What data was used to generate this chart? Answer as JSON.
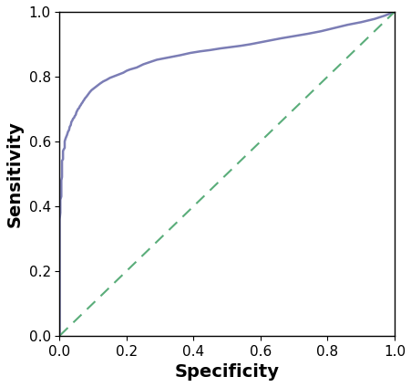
{
  "title": "",
  "xlabel": "Specificity",
  "ylabel": "Sensitivity",
  "xlim": [
    0.0,
    1.0
  ],
  "ylim": [
    0.0,
    1.0
  ],
  "xticks": [
    0.0,
    0.2,
    0.4,
    0.6,
    0.8,
    1.0
  ],
  "yticks": [
    0.0,
    0.2,
    0.4,
    0.6,
    0.8,
    1.0
  ],
  "roc_color": "#7b7db5",
  "diag_color": "#5aad7a",
  "roc_linewidth": 1.8,
  "diag_linewidth": 1.5,
  "diag_dashes": [
    6,
    4
  ],
  "xlabel_fontsize": 14,
  "ylabel_fontsize": 14,
  "tick_fontsize": 11,
  "background_color": "#ffffff",
  "roc_points_x": [
    0.0,
    0.0,
    0.0,
    0.002,
    0.002,
    0.005,
    0.005,
    0.007,
    0.007,
    0.01,
    0.01,
    0.012,
    0.015,
    0.015,
    0.018,
    0.02,
    0.022,
    0.025,
    0.028,
    0.03,
    0.033,
    0.035,
    0.038,
    0.04,
    0.043,
    0.045,
    0.048,
    0.05,
    0.055,
    0.058,
    0.06,
    0.063,
    0.065,
    0.068,
    0.07,
    0.073,
    0.075,
    0.08,
    0.085,
    0.09,
    0.095,
    0.1,
    0.11,
    0.12,
    0.13,
    0.14,
    0.15,
    0.16,
    0.17,
    0.18,
    0.19,
    0.2,
    0.21,
    0.22,
    0.23,
    0.24,
    0.25,
    0.27,
    0.29,
    0.31,
    0.33,
    0.36,
    0.39,
    0.42,
    0.45,
    0.48,
    0.51,
    0.54,
    0.57,
    0.6,
    0.63,
    0.66,
    0.7,
    0.74,
    0.78,
    0.82,
    0.86,
    0.9,
    0.94,
    0.97,
    1.0
  ],
  "roc_points_y": [
    0.0,
    0.13,
    0.36,
    0.38,
    0.42,
    0.43,
    0.48,
    0.49,
    0.54,
    0.545,
    0.57,
    0.575,
    0.58,
    0.6,
    0.61,
    0.615,
    0.62,
    0.63,
    0.635,
    0.645,
    0.65,
    0.66,
    0.665,
    0.67,
    0.673,
    0.678,
    0.682,
    0.69,
    0.7,
    0.703,
    0.708,
    0.712,
    0.716,
    0.72,
    0.724,
    0.728,
    0.732,
    0.738,
    0.745,
    0.752,
    0.758,
    0.762,
    0.77,
    0.778,
    0.785,
    0.79,
    0.796,
    0.8,
    0.804,
    0.808,
    0.812,
    0.818,
    0.822,
    0.825,
    0.828,
    0.833,
    0.838,
    0.845,
    0.852,
    0.856,
    0.86,
    0.866,
    0.873,
    0.878,
    0.882,
    0.887,
    0.891,
    0.895,
    0.9,
    0.906,
    0.912,
    0.918,
    0.925,
    0.932,
    0.94,
    0.95,
    0.96,
    0.968,
    0.978,
    0.988,
    1.0
  ]
}
